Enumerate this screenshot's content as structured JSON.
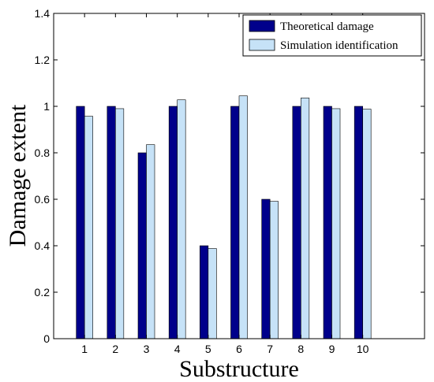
{
  "chart_data": {
    "type": "bar",
    "categories": [
      "1",
      "2",
      "3",
      "4",
      "5",
      "6",
      "7",
      "8",
      "9",
      "10"
    ],
    "series": [
      {
        "name": "Theoretical damage",
        "color": "#00008b",
        "values": [
          1.0,
          1.0,
          0.8,
          1.0,
          0.4,
          1.0,
          0.6,
          1.0,
          1.0,
          1.0
        ]
      },
      {
        "name": "Simulation identification",
        "color": "#c6e2f7",
        "values": [
          0.957,
          0.99,
          0.835,
          1.028,
          0.388,
          1.045,
          0.591,
          1.036,
          0.99,
          0.988
        ]
      }
    ],
    "xlabel": "Substructure",
    "ylabel": "Damage extent",
    "ylim": [
      0,
      1.4
    ],
    "yticks": [
      "0",
      "0.2",
      "0.4",
      "0.6",
      "0.8",
      "1",
      "1.2",
      "1.4"
    ],
    "xlim": [
      0,
      12
    ],
    "grid": false,
    "legend_position": "top-right"
  }
}
